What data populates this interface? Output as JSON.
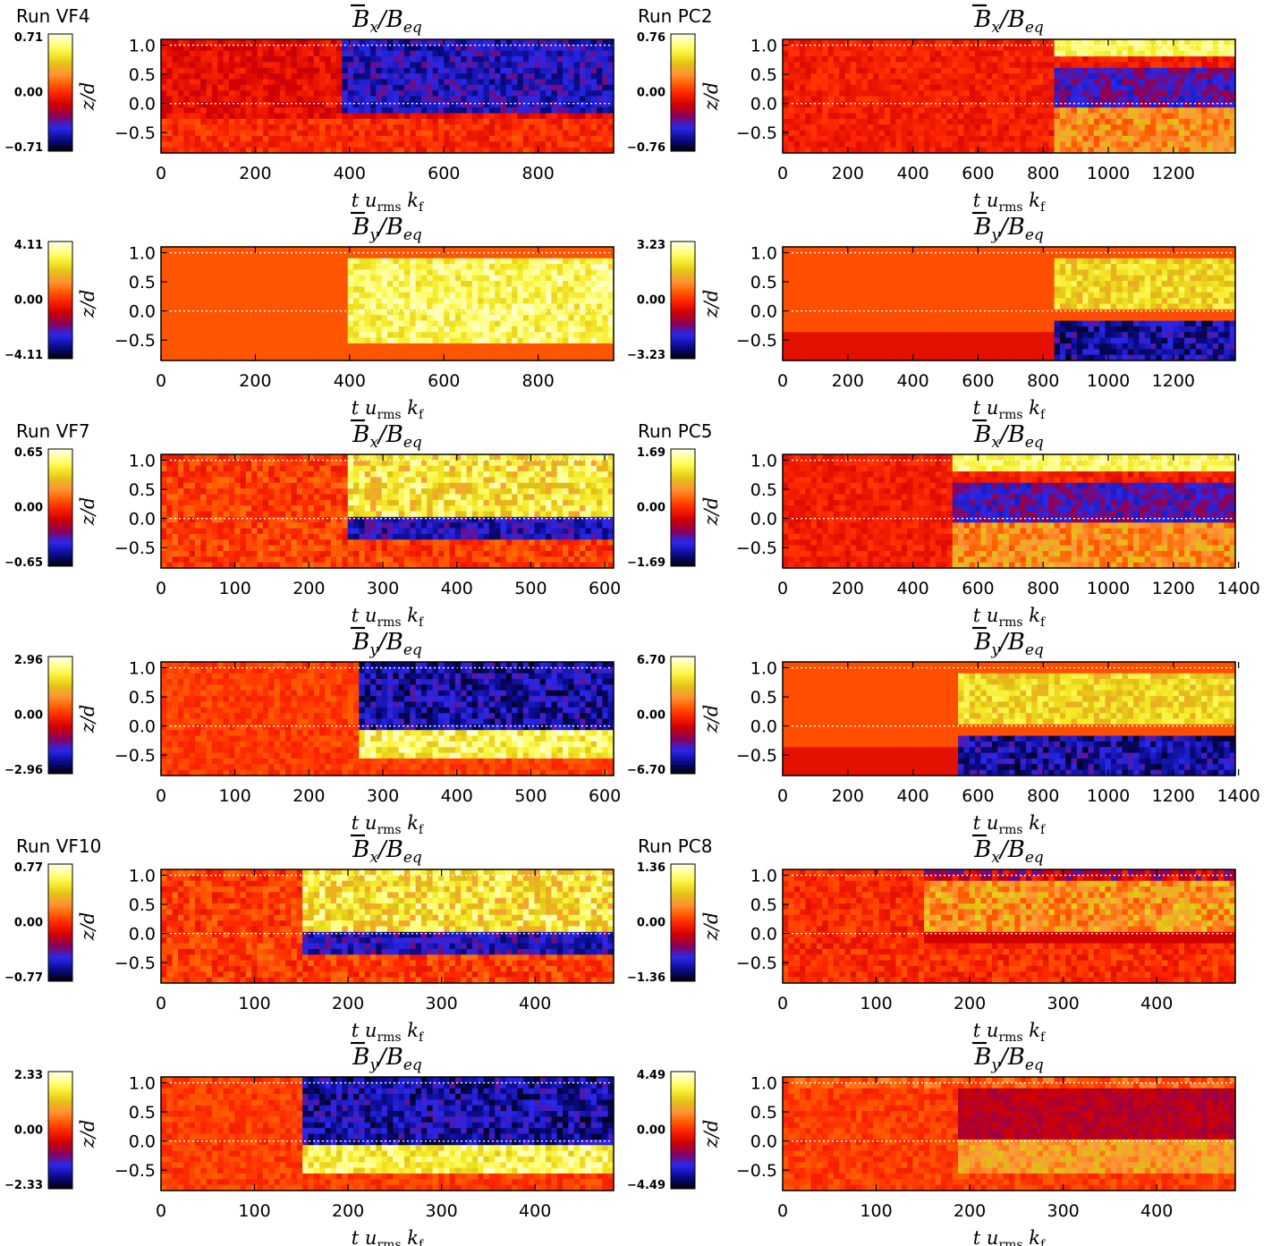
{
  "figure": {
    "x_label": {
      "t": "t",
      "u": "u",
      "u_sub": "rms",
      "k": "k",
      "k_sub": "f"
    },
    "y_label": "z/d",
    "overline_mark": "¯"
  },
  "chart_data": [
    {
      "type": "heatmap",
      "run_label": "Run  VF4",
      "symbol": "B",
      "component": "x",
      "denominator": "B",
      "den_sub": "eq",
      "xlim": [
        0,
        960
      ],
      "x_ticks": [
        0,
        200,
        400,
        600,
        800
      ],
      "ylim": [
        -0.85,
        1.1
      ],
      "y_ticks": [
        1.0,
        0.5,
        0.0,
        -0.5
      ],
      "dotted_lines_at": [
        0,
        1
      ],
      "colorbar": {
        "max": "0.71",
        "mid": "0.00",
        "min": "−0.71"
      },
      "onset_t": 390,
      "pattern": "x_neg_upper"
    },
    {
      "type": "heatmap",
      "run_label": "Run  PC2",
      "symbol": "B",
      "component": "x",
      "denominator": "B",
      "den_sub": "eq",
      "xlim": [
        0,
        1390
      ],
      "x_ticks": [
        0,
        200,
        400,
        600,
        800,
        1000,
        1200
      ],
      "ylim": [
        -0.85,
        1.1
      ],
      "y_ticks": [
        1.0,
        0.5,
        0.0,
        -0.5
      ],
      "dotted_lines_at": [
        0,
        1
      ],
      "colorbar": {
        "max": "0.76",
        "mid": "0.00",
        "min": "−0.76"
      },
      "onset_t": 830,
      "pattern": "x_neg_mid_pos_top"
    },
    {
      "type": "heatmap",
      "run_label": "",
      "symbol": "B",
      "component": "y",
      "denominator": "B",
      "den_sub": "eq",
      "xlim": [
        0,
        960
      ],
      "x_ticks": [
        0,
        200,
        400,
        600,
        800
      ],
      "ylim": [
        -0.85,
        1.1
      ],
      "y_ticks": [
        1.0,
        0.5,
        0.0,
        -0.5
      ],
      "dotted_lines_at": [
        0,
        1
      ],
      "colorbar": {
        "max": "4.11",
        "mid": "0.00",
        "min": "−4.11"
      },
      "onset_t": 400,
      "pattern": "y_pos_blob"
    },
    {
      "type": "heatmap",
      "run_label": "",
      "symbol": "B",
      "component": "y",
      "denominator": "B",
      "den_sub": "eq",
      "xlim": [
        0,
        1390
      ],
      "x_ticks": [
        0,
        200,
        400,
        600,
        800,
        1000,
        1200
      ],
      "ylim": [
        -0.85,
        1.1
      ],
      "y_ticks": [
        1.0,
        0.5,
        0.0,
        -0.5
      ],
      "dotted_lines_at": [
        0,
        1
      ],
      "colorbar": {
        "max": "3.23",
        "mid": "0.00",
        "min": "−3.23"
      },
      "onset_t": 830,
      "pattern": "y_pos_upper_neg_lower"
    },
    {
      "type": "heatmap",
      "run_label": "Run  VF7",
      "symbol": "B",
      "component": "x",
      "denominator": "B",
      "den_sub": "eq",
      "xlim": [
        0,
        612
      ],
      "x_ticks": [
        0,
        100,
        200,
        300,
        400,
        500,
        600
      ],
      "ylim": [
        -0.85,
        1.1
      ],
      "y_ticks": [
        1.0,
        0.5,
        0.0,
        -0.5
      ],
      "dotted_lines_at": [
        0,
        1
      ],
      "colorbar": {
        "max": "0.65",
        "mid": "0.00",
        "min": "−0.65"
      },
      "onset_t": 255,
      "pattern": "x_pos_upper_neg_band"
    },
    {
      "type": "heatmap",
      "run_label": "Run  PC5",
      "symbol": "B",
      "component": "x",
      "denominator": "B",
      "den_sub": "eq",
      "xlim": [
        0,
        1390
      ],
      "x_ticks": [
        0,
        200,
        400,
        600,
        800,
        1000,
        1200,
        1400
      ],
      "ylim": [
        -0.85,
        1.1
      ],
      "y_ticks": [
        1.0,
        0.5,
        0.0,
        -0.5
      ],
      "dotted_lines_at": [
        0,
        1
      ],
      "colorbar": {
        "max": "1.69",
        "mid": "0.00",
        "min": "−1.69"
      },
      "onset_t": 520,
      "pattern": "x_neg_mid_pos_top"
    },
    {
      "type": "heatmap",
      "run_label": "",
      "symbol": "B",
      "component": "y",
      "denominator": "B",
      "den_sub": "eq",
      "xlim": [
        0,
        612
      ],
      "x_ticks": [
        0,
        100,
        200,
        300,
        400,
        500,
        600
      ],
      "ylim": [
        -0.85,
        1.1
      ],
      "y_ticks": [
        1.0,
        0.5,
        0.0,
        -0.5
      ],
      "dotted_lines_at": [
        0,
        1
      ],
      "colorbar": {
        "max": "2.96",
        "mid": "0.00",
        "min": "−2.96"
      },
      "onset_t": 265,
      "pattern": "y_neg_upper_pos_lower"
    },
    {
      "type": "heatmap",
      "run_label": "",
      "symbol": "B",
      "component": "y",
      "denominator": "B",
      "den_sub": "eq",
      "xlim": [
        0,
        1390
      ],
      "x_ticks": [
        0,
        200,
        400,
        600,
        800,
        1000,
        1200,
        1400
      ],
      "ylim": [
        -0.85,
        1.1
      ],
      "y_ticks": [
        1.0,
        0.5,
        0.0,
        -0.5
      ],
      "dotted_lines_at": [
        0,
        1
      ],
      "colorbar": {
        "max": "6.70",
        "mid": "0.00",
        "min": "−6.70"
      },
      "onset_t": 540,
      "pattern": "y_pos_upper_neg_lower"
    },
    {
      "type": "heatmap",
      "run_label": "Run  VF10",
      "symbol": "B",
      "component": "x",
      "denominator": "B",
      "den_sub": "eq",
      "xlim": [
        0,
        484
      ],
      "x_ticks": [
        0,
        100,
        200,
        300,
        400
      ],
      "ylim": [
        -0.85,
        1.1
      ],
      "y_ticks": [
        1.0,
        0.5,
        0.0,
        -0.5
      ],
      "dotted_lines_at": [
        0,
        1
      ],
      "colorbar": {
        "max": "0.77",
        "mid": "0.00",
        "min": "−0.77"
      },
      "onset_t": 150,
      "pattern": "x_pos_upper_neg_band"
    },
    {
      "type": "heatmap",
      "run_label": "Run  PC8",
      "symbol": "B",
      "component": "x",
      "denominator": "B",
      "den_sub": "eq",
      "xlim": [
        0,
        484
      ],
      "x_ticks": [
        0,
        100,
        200,
        300,
        400
      ],
      "ylim": [
        -0.85,
        1.1
      ],
      "y_ticks": [
        1.0,
        0.5,
        0.0,
        -0.5
      ],
      "dotted_lines_at": [
        0,
        1
      ],
      "colorbar": {
        "max": "1.36",
        "mid": "0.00",
        "min": "−1.36"
      },
      "onset_t": 150,
      "pattern": "x_weak"
    },
    {
      "type": "heatmap",
      "run_label": "",
      "symbol": "B",
      "component": "y",
      "denominator": "B",
      "den_sub": "eq",
      "xlim": [
        0,
        484
      ],
      "x_ticks": [
        0,
        100,
        200,
        300,
        400
      ],
      "ylim": [
        -0.85,
        1.1
      ],
      "y_ticks": [
        1.0,
        0.5,
        0.0,
        -0.5
      ],
      "dotted_lines_at": [
        0,
        1
      ],
      "colorbar": {
        "max": "2.33",
        "mid": "0.00",
        "min": "−2.33"
      },
      "onset_t": 150,
      "pattern": "y_neg_upper_pos_lower"
    },
    {
      "type": "heatmap",
      "run_label": "",
      "symbol": "B",
      "component": "y",
      "denominator": "B",
      "den_sub": "eq",
      "xlim": [
        0,
        484
      ],
      "x_ticks": [
        0,
        100,
        200,
        300,
        400
      ],
      "ylim": [
        -0.85,
        1.1
      ],
      "y_ticks": [
        1.0,
        0.5,
        0.0,
        -0.5
      ],
      "dotted_lines_at": [
        0,
        1
      ],
      "colorbar": {
        "max": "4.49",
        "mid": "0.00",
        "min": "−4.49"
      },
      "onset_t": 190,
      "pattern": "y_weak"
    }
  ]
}
